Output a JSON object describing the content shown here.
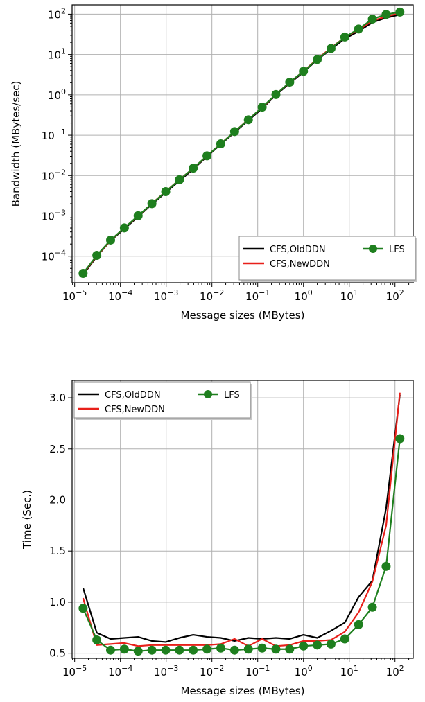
{
  "chart_data": [
    {
      "type": "line",
      "xlabel": "Message sizes (MBytes)",
      "ylabel": "Bandwidth (MBytes/sec)",
      "xscale": "log",
      "yscale": "log",
      "xlim": [
        8.8e-06,
        250
      ],
      "ylim": [
        2.2e-05,
        170
      ],
      "grid": true,
      "legend": "lower right",
      "x_ticks": [
        {
          "value": 1e-05,
          "base": "10",
          "exp": "−5"
        },
        {
          "value": 0.0001,
          "base": "10",
          "exp": "−4"
        },
        {
          "value": 0.001,
          "base": "10",
          "exp": "−3"
        },
        {
          "value": 0.01,
          "base": "10",
          "exp": "−2"
        },
        {
          "value": 0.1,
          "base": "10",
          "exp": "−1"
        },
        {
          "value": 1,
          "base": "10",
          "exp": "0"
        },
        {
          "value": 10,
          "base": "10",
          "exp": "1"
        },
        {
          "value": 100,
          "base": "10",
          "exp": "2"
        }
      ],
      "y_ticks": [
        {
          "value": 0.0001,
          "base": "10",
          "exp": "−4"
        },
        {
          "value": 0.001,
          "base": "10",
          "exp": "−3"
        },
        {
          "value": 0.01,
          "base": "10",
          "exp": "−2"
        },
        {
          "value": 0.1,
          "base": "10",
          "exp": "−1"
        },
        {
          "value": 1,
          "base": "10",
          "exp": "0"
        },
        {
          "value": 10,
          "base": "10",
          "exp": "1"
        },
        {
          "value": 100,
          "base": "10",
          "exp": "2"
        }
      ],
      "x": [
        1.53e-05,
        3.05e-05,
        6.1e-05,
        0.000122,
        0.000244,
        0.000488,
        0.000977,
        0.00195,
        0.0039,
        0.0078,
        0.0156,
        0.03125,
        0.0625,
        0.125,
        0.25,
        0.5,
        1,
        2,
        4,
        8,
        16,
        32,
        64,
        128
      ],
      "series": [
        {
          "name": "CFS,OldDDN",
          "color": "#000000",
          "marker": false,
          "values": [
            3.45e-05,
            9.87e-05,
            0.000243,
            0.000477,
            0.000949,
            0.00195,
            0.00382,
            0.00738,
            0.0144,
            0.0297,
            0.0596,
            0.118,
            0.233,
            0.456,
            0.994,
            1.94,
            3.67,
            7.38,
            13.5,
            24.7,
            37.5,
            62.2,
            81.4,
            97.4
          ]
        },
        {
          "name": "CFS,NewDDN",
          "color": "#e8201a",
          "marker": false,
          "values": [
            3.67e-05,
            0.000102,
            0.000246,
            0.000506,
            0.000982,
            0.00203,
            0.00401,
            0.0079,
            0.0151,
            0.0307,
            0.0615,
            0.122,
            0.246,
            0.481,
            1.03,
            2.02,
            3.85,
            7.74,
            14.6,
            26.9,
            41.2,
            67.7,
            88.3,
            104.6
          ]
        },
        {
          "name": "LFS",
          "color": "#1e7f1e",
          "marker": true,
          "values": [
            3.75e-05,
            0.000105,
            0.000251,
            0.000502,
            0.00101,
            0.00201,
            0.00399,
            0.00785,
            0.0152,
            0.0308,
            0.0611,
            0.123,
            0.241,
            0.495,
            1.02,
            2.06,
            3.83,
            7.52,
            14.1,
            27.1,
            42.8,
            75.4,
            98.8,
            112.6
          ]
        }
      ]
    },
    {
      "type": "line",
      "xlabel": "Message sizes (MBytes)",
      "ylabel": "Time (Sec.)",
      "xscale": "log",
      "yscale": "linear",
      "xlim": [
        8.8e-06,
        250
      ],
      "ylim": [
        0.45,
        3.17
      ],
      "grid": true,
      "legend": "upper left",
      "x_ticks": [
        {
          "value": 1e-05,
          "base": "10",
          "exp": "−5"
        },
        {
          "value": 0.0001,
          "base": "10",
          "exp": "−4"
        },
        {
          "value": 0.001,
          "base": "10",
          "exp": "−3"
        },
        {
          "value": 0.01,
          "base": "10",
          "exp": "−2"
        },
        {
          "value": 0.1,
          "base": "10",
          "exp": "−1"
        },
        {
          "value": 1,
          "base": "10",
          "exp": "0"
        },
        {
          "value": 10,
          "base": "10",
          "exp": "1"
        },
        {
          "value": 100,
          "base": "10",
          "exp": "2"
        }
      ],
      "y_ticks": [
        {
          "value": 0.5,
          "label": "0.5"
        },
        {
          "value": 1.0,
          "label": "1.0"
        },
        {
          "value": 1.5,
          "label": "1.5"
        },
        {
          "value": 2.0,
          "label": "2.0"
        },
        {
          "value": 2.5,
          "label": "2.5"
        },
        {
          "value": 3.0,
          "label": "3.0"
        }
      ],
      "x": [
        1.53e-05,
        3.05e-05,
        6.1e-05,
        0.000122,
        0.000244,
        0.000488,
        0.000977,
        0.00195,
        0.0039,
        0.0078,
        0.0156,
        0.03125,
        0.0625,
        0.125,
        0.25,
        0.5,
        1,
        2,
        4,
        8,
        16,
        32,
        64,
        128
      ],
      "series": [
        {
          "name": "CFS,OldDDN",
          "color": "#000000",
          "marker": false,
          "values": [
            1.14,
            0.7,
            0.64,
            0.65,
            0.66,
            0.62,
            0.61,
            0.65,
            0.68,
            0.66,
            0.65,
            0.62,
            0.65,
            0.64,
            0.65,
            0.64,
            0.68,
            0.65,
            0.72,
            0.8,
            1.05,
            1.21,
            1.92,
            3.03
          ]
        },
        {
          "name": "CFS,NewDDN",
          "color": "#e8201a",
          "marker": false,
          "values": [
            1.04,
            0.58,
            0.59,
            0.6,
            0.57,
            0.58,
            0.58,
            0.58,
            0.58,
            0.58,
            0.59,
            0.64,
            0.57,
            0.64,
            0.57,
            0.58,
            0.62,
            0.62,
            0.63,
            0.71,
            0.9,
            1.2,
            1.75,
            3.05
          ]
        },
        {
          "name": "LFS",
          "color": "#1e7f1e",
          "marker": true,
          "values": [
            0.94,
            0.63,
            0.53,
            0.54,
            0.52,
            0.53,
            0.53,
            0.53,
            0.53,
            0.54,
            0.55,
            0.53,
            0.54,
            0.55,
            0.54,
            0.54,
            0.57,
            0.58,
            0.59,
            0.64,
            0.78,
            0.95,
            1.35,
            2.6
          ]
        }
      ]
    }
  ]
}
